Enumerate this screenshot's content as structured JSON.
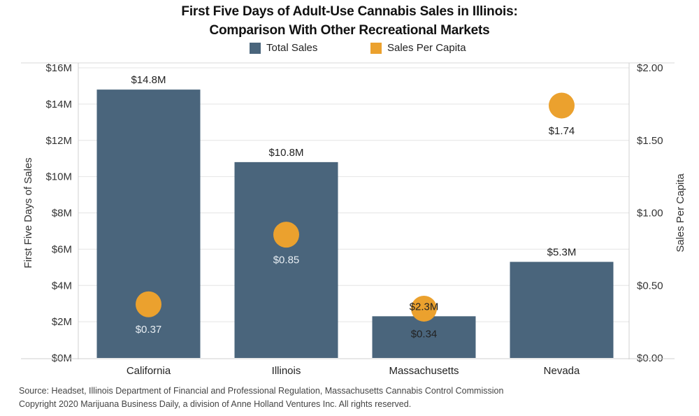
{
  "chart_data": {
    "type": "bar",
    "title": "First Five Days of Adult-Use Cannabis Sales in Illinois:",
    "subtitle": "Comparison With Other Recreational Markets",
    "categories": [
      "California",
      "Illinois",
      "Massachusetts",
      "Nevada"
    ],
    "series": [
      {
        "name": "Total Sales",
        "type": "bar",
        "axis": "left",
        "color": "#4a657c",
        "values": [
          14.8,
          10.8,
          2.3,
          5.3
        ],
        "labels": [
          "$14.8M",
          "$10.8M",
          "$2.3M",
          "$5.3M"
        ]
      },
      {
        "name": "Sales Per Capita",
        "type": "scatter",
        "axis": "right",
        "color": "#eba12e",
        "values": [
          0.37,
          0.85,
          0.34,
          1.74
        ],
        "labels": [
          "$0.37",
          "$0.85",
          "$0.34",
          "$1.74"
        ]
      }
    ],
    "ylabel": "First Five Days of Sales",
    "ylabel_right": "Sales Per Capita",
    "xlabel": "",
    "ylim": [
      0,
      16
    ],
    "ylim_right": [
      0,
      2
    ],
    "yticks": [
      {
        "value": 0,
        "label": "$0M"
      },
      {
        "value": 2,
        "label": "$2M"
      },
      {
        "value": 4,
        "label": "$4M"
      },
      {
        "value": 6,
        "label": "$6M"
      },
      {
        "value": 8,
        "label": "$8M"
      },
      {
        "value": 10,
        "label": "$10M"
      },
      {
        "value": 12,
        "label": "$12M"
      },
      {
        "value": 14,
        "label": "$14M"
      },
      {
        "value": 16,
        "label": "$16M"
      }
    ],
    "yticks_right": [
      {
        "value": 0,
        "label": "$0.00"
      },
      {
        "value": 0.5,
        "label": "$0.50"
      },
      {
        "value": 1.0,
        "label": "$1.00"
      },
      {
        "value": 1.5,
        "label": "$1.50"
      },
      {
        "value": 2.0,
        "label": "$2.00"
      }
    ],
    "grid": true,
    "legend_position": "top-center",
    "legend": [
      "Total Sales",
      "Sales Per Capita"
    ]
  },
  "source_line": "Source: Headset, Illinois Department of Financial and Professional Regulation, Massachusetts Cannabis Control Commission",
  "copyright_line": "Copyright 2020 Marijuana Business Daily, a division of Anne Holland Ventures Inc. All rights reserved."
}
